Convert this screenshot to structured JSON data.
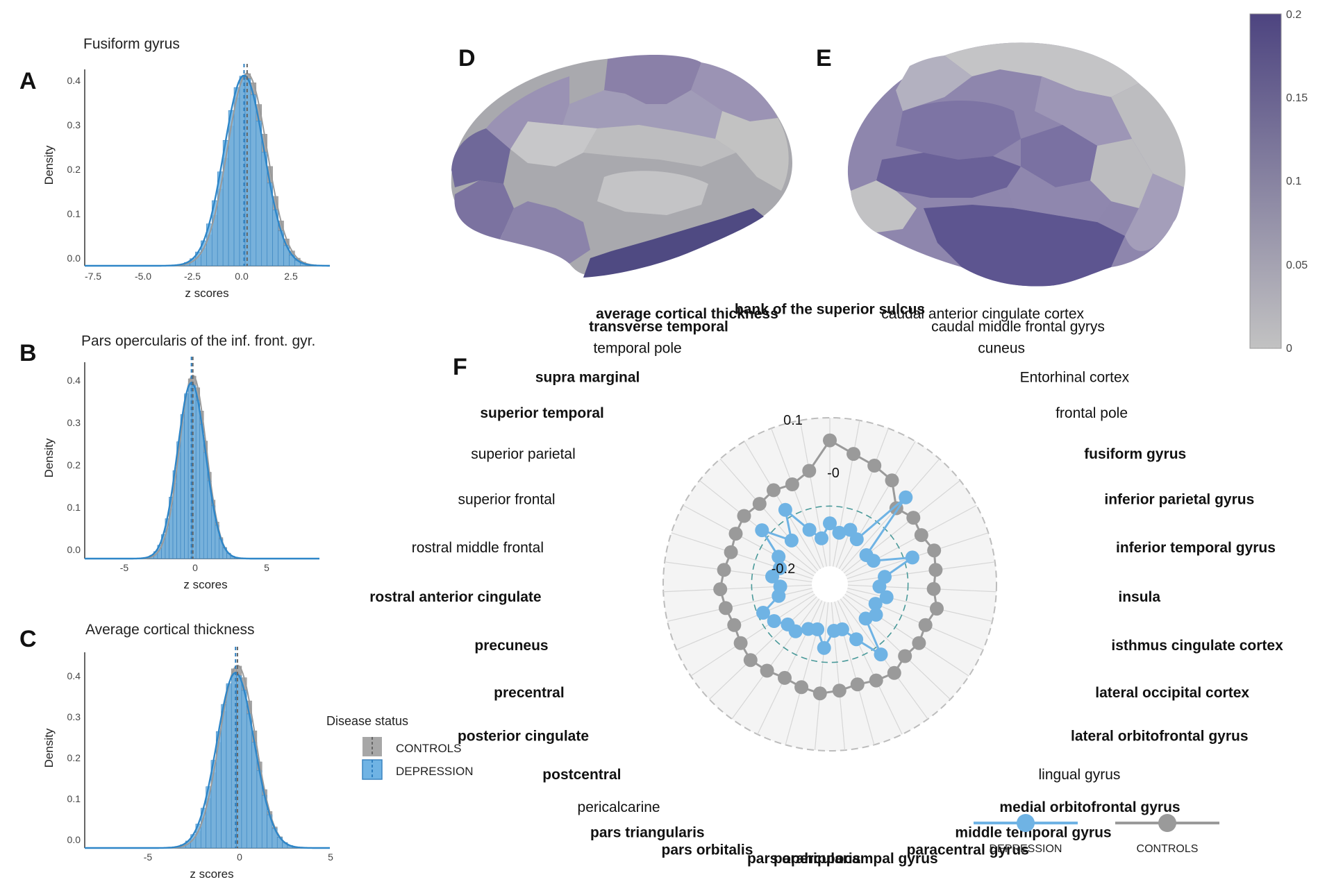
{
  "panels": {
    "A": {
      "letter": "A",
      "title": "Fusiform gyrus",
      "xlabel": "z scores",
      "ylabel": "Density",
      "xticks": [
        "-7.5",
        "-5.0",
        "-2.5",
        "0.0",
        "2.5"
      ],
      "yticks": [
        "0.0",
        "0.1",
        "0.2",
        "0.3",
        "0.4"
      ]
    },
    "B": {
      "letter": "B",
      "title": "Pars opercularis of the inf. front. gyr.",
      "xlabel": "z scores",
      "ylabel": "Density",
      "xticks": [
        "-5",
        "0",
        "5"
      ],
      "yticks": [
        "0.0",
        "0.1",
        "0.2",
        "0.3",
        "0.4"
      ]
    },
    "C": {
      "letter": "C",
      "title": "Average cortical thickness",
      "xlabel": "z scores",
      "ylabel": "Density",
      "xticks": [
        "-5",
        "0",
        "5"
      ],
      "yticks": [
        "0.0",
        "0.1",
        "0.2",
        "0.3",
        "0.4"
      ]
    },
    "D": {
      "letter": "D"
    },
    "E": {
      "letter": "E"
    },
    "F": {
      "letter": "F"
    }
  },
  "legend": {
    "title": "Disease status",
    "items": [
      {
        "label": "CONTROLS",
        "color": "#a7a7a7"
      },
      {
        "label": "DEPRESSION",
        "color": "#6fb3e4"
      }
    ]
  },
  "colorbar": {
    "ticks": [
      "0.2",
      "0.15",
      "0.1",
      "0.05",
      "0"
    ],
    "color_high": "#4d4480",
    "color_low": "#c2c2c2"
  },
  "radar": {
    "ring_labels": [
      "0.1",
      "-0",
      "-0.2"
    ],
    "legend": [
      {
        "label": "DEPRESSION",
        "color": "#6fb3e4"
      },
      {
        "label": "CONTROLS",
        "color": "#9a9a9a"
      }
    ]
  },
  "chart_data": [
    {
      "type": "histogram",
      "panel": "A",
      "title": "Fusiform gyrus",
      "xlabel": "z scores",
      "ylabel": "Density",
      "xlim": [
        -7.8,
        4.2
      ],
      "ylim": [
        0,
        0.42
      ],
      "series": [
        {
          "name": "CONTROLS",
          "mean": 0.15,
          "sd": 0.97
        },
        {
          "name": "DEPRESSION",
          "mean": 0.0,
          "sd": 0.98
        }
      ]
    },
    {
      "type": "histogram",
      "panel": "B",
      "title": "Pars opercularis of the inf. front. gyr.",
      "xlabel": "z scores",
      "ylabel": "Density",
      "xlim": [
        -7.5,
        9
      ],
      "ylim": [
        0,
        0.45
      ],
      "series": [
        {
          "name": "CONTROLS",
          "mean": 0.1,
          "sd": 0.95
        },
        {
          "name": "DEPRESSION",
          "mean": 0.0,
          "sd": 0.99
        }
      ]
    },
    {
      "type": "histogram",
      "panel": "C",
      "title": "Average cortical thickness",
      "xlabel": "z scores",
      "ylabel": "Density",
      "xlim": [
        -8,
        5
      ],
      "ylim": [
        0,
        0.45
      ],
      "series": [
        {
          "name": "CONTROLS",
          "mean": 0.1,
          "sd": 0.95
        },
        {
          "name": "DEPRESSION",
          "mean": 0.0,
          "sd": 0.99
        }
      ]
    },
    {
      "type": "radar",
      "panel": "F",
      "categories": [
        "bank of the superior sulcus",
        "caudal anterior cingulate cortex",
        "caudal middle frontal gyrys",
        "cuneus",
        "Entorhinal cortex",
        "frontal pole",
        "fusiform gyrus",
        "inferior parietal gyrus",
        "inferior temporal gyrus",
        "insula",
        "isthmus cingulate cortex",
        "lateral occipital cortex",
        "lateral orbitofrontal gyrus",
        "lingual gyrus",
        "medial orbitofrontal gyrus",
        "middle temporal gyrus",
        "paracentral gyrus",
        "parahippocampal gyrus",
        "pars opercularis",
        "pars orbitalis",
        "pars triangularis",
        "pericalcarine",
        "postcentral",
        "posterior cingulate",
        "precentral",
        "precuneus",
        "rostral anterior cingulate",
        "rostral middle frontal",
        "superior frontal",
        "superior parietal",
        "superior temporal",
        "supra marginal",
        "temporal pole",
        "transverse temporal",
        "average cortical thickness"
      ],
      "bold": [
        true,
        false,
        false,
        false,
        false,
        false,
        true,
        true,
        true,
        true,
        true,
        true,
        true,
        false,
        true,
        true,
        true,
        true,
        true,
        true,
        true,
        false,
        true,
        true,
        true,
        true,
        true,
        false,
        false,
        false,
        true,
        true,
        false,
        true,
        true
      ],
      "rlim": [
        -0.35,
        0.15
      ],
      "series": [
        {
          "name": "DEPRESSION",
          "color": "#6fb3e4",
          "values": [
            -0.19,
            -0.22,
            -0.2,
            -0.22,
            -0.0,
            -0.24,
            -0.23,
            -0.1,
            -0.21,
            -0.23,
            -0.2,
            -0.23,
            -0.21,
            -0.23,
            -0.1,
            -0.19,
            -0.24,
            -0.24,
            -0.18,
            -0.24,
            -0.23,
            -0.2,
            -0.2,
            -0.17,
            -0.15,
            -0.22,
            -0.23,
            -0.2,
            -0.22,
            -0.2,
            -0.1,
            -0.2,
            -0.1,
            -0.2,
            -0.24
          ]
        },
        {
          "name": "CONTROLS",
          "color": "#9a9a9a",
          "values": [
            0.1,
            0.06,
            0.04,
            0.02,
            -0.05,
            -0.03,
            -0.04,
            -0.02,
            -0.03,
            -0.04,
            -0.02,
            -0.04,
            -0.03,
            -0.04,
            -0.02,
            -0.03,
            -0.04,
            -0.03,
            -0.02,
            -0.03,
            -0.04,
            -0.03,
            -0.02,
            -0.03,
            -0.04,
            -0.03,
            -0.02,
            -0.03,
            -0.04,
            -0.03,
            -0.02,
            -0.03,
            -0.02,
            -0.03,
            0.0
          ]
        }
      ]
    }
  ]
}
